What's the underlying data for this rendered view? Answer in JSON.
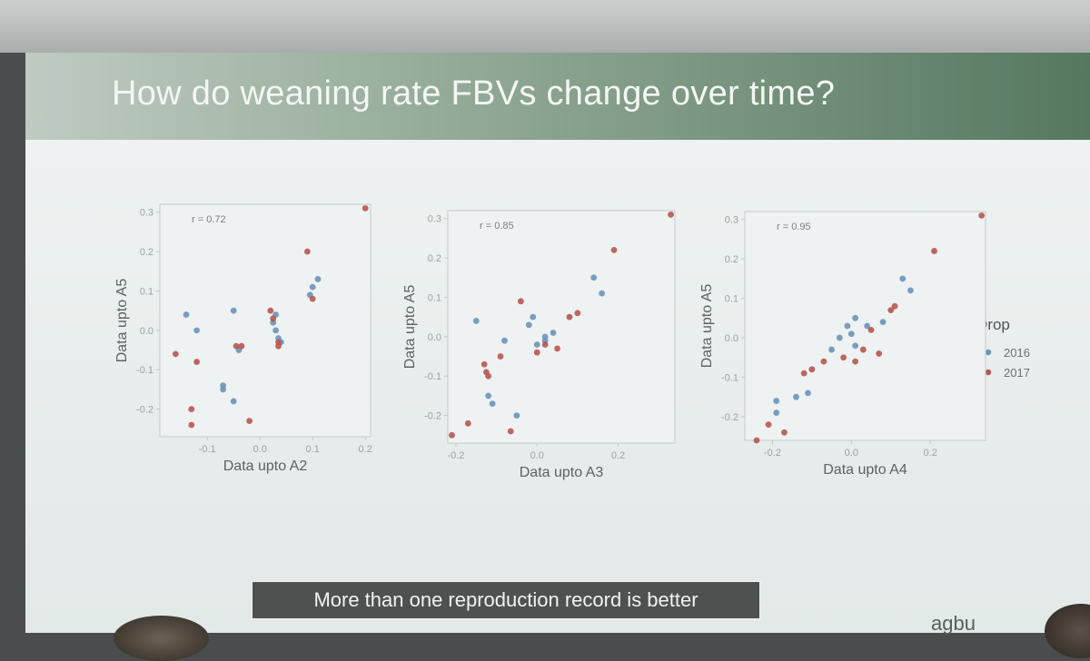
{
  "slide": {
    "title": "How do weaning rate FBVs change over time?",
    "caption": "More than one reproduction record is better",
    "logo_text": "agbu"
  },
  "colors": {
    "s2016": "#6a93b8",
    "s2017": "#b85550",
    "axis": "#c2c8c8",
    "frame": "#c4caca"
  },
  "legend": {
    "title": "Drop",
    "items": [
      {
        "label": "2016",
        "color": "#6a93b8"
      },
      {
        "label": "2017",
        "color": "#b85550"
      }
    ]
  },
  "chart_data": [
    {
      "type": "scatter",
      "xlabel": "Data upto A2",
      "ylabel": "Data upto A5",
      "annotation": "r = 0.72",
      "xlim": [
        -0.19,
        0.21
      ],
      "ylim": [
        -0.27,
        0.32
      ],
      "xticks": [
        -0.1,
        0.0,
        0.1,
        0.2
      ],
      "xtick_labels": [
        "-0.1",
        "0.0",
        "0.1",
        "0.2"
      ],
      "yticks": [
        -0.2,
        -0.1,
        0.0,
        0.1,
        0.2,
        0.3
      ],
      "ytick_labels": [
        "-0.2",
        "-0.1",
        "0.0",
        "0.1",
        "0.2",
        "0.3"
      ],
      "series": [
        {
          "name": "2016",
          "points": [
            [
              -0.14,
              0.04
            ],
            [
              -0.12,
              0.0
            ],
            [
              -0.07,
              -0.14
            ],
            [
              -0.07,
              -0.15
            ],
            [
              -0.05,
              0.05
            ],
            [
              -0.05,
              -0.18
            ],
            [
              -0.04,
              -0.05
            ],
            [
              0.03,
              0.04
            ],
            [
              0.025,
              0.02
            ],
            [
              0.03,
              0.0
            ],
            [
              0.035,
              -0.02
            ],
            [
              0.04,
              -0.03
            ],
            [
              0.11,
              0.13
            ],
            [
              0.1,
              0.11
            ],
            [
              0.095,
              0.09
            ]
          ]
        },
        {
          "name": "2017",
          "points": [
            [
              -0.16,
              -0.06
            ],
            [
              -0.13,
              -0.2
            ],
            [
              -0.13,
              -0.24
            ],
            [
              -0.12,
              -0.08
            ],
            [
              -0.045,
              -0.04
            ],
            [
              -0.035,
              -0.04
            ],
            [
              -0.02,
              -0.23
            ],
            [
              0.02,
              0.05
            ],
            [
              0.025,
              0.03
            ],
            [
              0.035,
              -0.03
            ],
            [
              0.035,
              -0.04
            ],
            [
              0.09,
              0.2
            ],
            [
              0.1,
              0.08
            ],
            [
              0.2,
              0.31
            ]
          ]
        }
      ]
    },
    {
      "type": "scatter",
      "xlabel": "Data upto A3",
      "ylabel": "Data upto A5",
      "annotation": "r = 0.85",
      "xlim": [
        -0.22,
        0.34
      ],
      "ylim": [
        -0.27,
        0.32
      ],
      "xticks": [
        -0.2,
        0.0,
        0.2
      ],
      "xtick_labels": [
        "-0.2",
        "0.0",
        "0.2"
      ],
      "yticks": [
        -0.2,
        -0.1,
        0.0,
        0.1,
        0.2,
        0.3
      ],
      "ytick_labels": [
        "-0.2",
        "-0.1",
        "0.0",
        "0.1",
        "0.2",
        "0.3"
      ],
      "series": [
        {
          "name": "2016",
          "points": [
            [
              -0.15,
              0.04
            ],
            [
              -0.12,
              -0.15
            ],
            [
              -0.11,
              -0.17
            ],
            [
              -0.08,
              -0.01
            ],
            [
              -0.05,
              -0.2
            ],
            [
              -0.02,
              0.03
            ],
            [
              -0.01,
              0.05
            ],
            [
              0.02,
              0.0
            ],
            [
              0.0,
              -0.02
            ],
            [
              0.02,
              -0.01
            ],
            [
              0.04,
              0.01
            ],
            [
              0.14,
              0.15
            ],
            [
              0.16,
              0.11
            ]
          ]
        },
        {
          "name": "2017",
          "points": [
            [
              -0.21,
              -0.25
            ],
            [
              -0.17,
              -0.22
            ],
            [
              -0.13,
              -0.07
            ],
            [
              -0.125,
              -0.09
            ],
            [
              -0.12,
              -0.1
            ],
            [
              -0.09,
              -0.05
            ],
            [
              -0.065,
              -0.24
            ],
            [
              -0.04,
              0.09
            ],
            [
              0.0,
              -0.04
            ],
            [
              0.02,
              -0.02
            ],
            [
              0.05,
              -0.03
            ],
            [
              0.08,
              0.05
            ],
            [
              0.1,
              0.06
            ],
            [
              0.19,
              0.22
            ],
            [
              0.33,
              0.31
            ]
          ]
        }
      ]
    },
    {
      "type": "scatter",
      "xlabel": "Data upto A4",
      "ylabel": "Data upto A5",
      "annotation": "r = 0.95",
      "xlim": [
        -0.27,
        0.34
      ],
      "ylim": [
        -0.26,
        0.32
      ],
      "xticks": [
        -0.2,
        0.0,
        0.2
      ],
      "xtick_labels": [
        "-0.2",
        "0.0",
        "0.2"
      ],
      "yticks": [
        -0.2,
        -0.1,
        0.0,
        0.1,
        0.2,
        0.3
      ],
      "ytick_labels": [
        "-0.2",
        "-0.1",
        "0.0",
        "0.1",
        "0.2",
        "0.3"
      ],
      "series": [
        {
          "name": "2016",
          "points": [
            [
              -0.19,
              -0.16
            ],
            [
              -0.19,
              -0.19
            ],
            [
              -0.14,
              -0.15
            ],
            [
              -0.11,
              -0.14
            ],
            [
              -0.05,
              -0.03
            ],
            [
              -0.03,
              0.0
            ],
            [
              -0.01,
              0.03
            ],
            [
              0.0,
              0.01
            ],
            [
              0.01,
              -0.02
            ],
            [
              0.01,
              0.05
            ],
            [
              0.04,
              0.03
            ],
            [
              0.08,
              0.04
            ],
            [
              0.13,
              0.15
            ],
            [
              0.15,
              0.12
            ]
          ]
        },
        {
          "name": "2017",
          "points": [
            [
              -0.24,
              -0.26
            ],
            [
              -0.21,
              -0.22
            ],
            [
              -0.17,
              -0.24
            ],
            [
              -0.12,
              -0.09
            ],
            [
              -0.1,
              -0.08
            ],
            [
              -0.07,
              -0.06
            ],
            [
              -0.02,
              -0.05
            ],
            [
              0.01,
              -0.06
            ],
            [
              0.03,
              -0.03
            ],
            [
              0.05,
              0.02
            ],
            [
              0.07,
              -0.04
            ],
            [
              0.1,
              0.07
            ],
            [
              0.11,
              0.08
            ],
            [
              0.21,
              0.22
            ],
            [
              0.33,
              0.31
            ]
          ]
        }
      ]
    }
  ]
}
